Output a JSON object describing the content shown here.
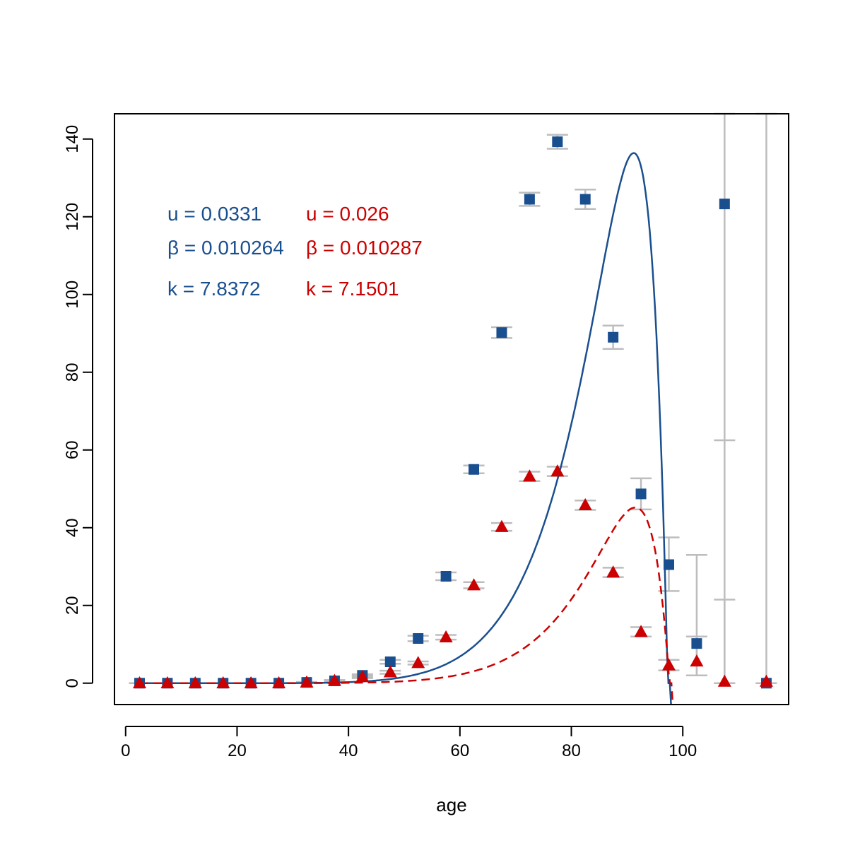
{
  "chart_data": {
    "type": "scatter",
    "title": "",
    "xlabel": "age",
    "ylabel": "",
    "xlim": [
      -2,
      119
    ],
    "ylim": [
      -5.5,
      146.5
    ],
    "x_ticks": [
      0,
      20,
      40,
      60,
      80,
      100
    ],
    "y_ticks": [
      0,
      20,
      40,
      60,
      80,
      100,
      120,
      140
    ],
    "grid": false,
    "colors": {
      "blue": "#1a4f8f",
      "red": "#cc0000",
      "errorbar": "#bdbdbd"
    },
    "series": [
      {
        "marker": "square",
        "color": "#1a4f8f",
        "points": [
          {
            "x": 2.5,
            "y": 0,
            "lo": 0,
            "hi": 0
          },
          {
            "x": 7.5,
            "y": 0,
            "lo": 0,
            "hi": 0
          },
          {
            "x": 12.5,
            "y": 0,
            "lo": 0,
            "hi": 0
          },
          {
            "x": 17.5,
            "y": 0,
            "lo": 0,
            "hi": 0
          },
          {
            "x": 22.5,
            "y": 0,
            "lo": 0,
            "hi": 0
          },
          {
            "x": 27.5,
            "y": 0,
            "lo": 0,
            "hi": 0
          },
          {
            "x": 32.5,
            "y": 0.2,
            "lo": 0.1,
            "hi": 0.3
          },
          {
            "x": 37.5,
            "y": 0.6,
            "lo": 0.4,
            "hi": 0.8
          },
          {
            "x": 42.5,
            "y": 2.0,
            "lo": 1.7,
            "hi": 2.3
          },
          {
            "x": 47.5,
            "y": 5.5,
            "lo": 5.0,
            "hi": 6.0
          },
          {
            "x": 52.5,
            "y": 11.5,
            "lo": 10.8,
            "hi": 12.2
          },
          {
            "x": 57.5,
            "y": 27.5,
            "lo": 26.5,
            "hi": 28.5
          },
          {
            "x": 62.5,
            "y": 55.0,
            "lo": 54.0,
            "hi": 56.0
          },
          {
            "x": 67.5,
            "y": 90.2,
            "lo": 88.8,
            "hi": 91.6
          },
          {
            "x": 72.5,
            "y": 124.5,
            "lo": 122.8,
            "hi": 126.2
          },
          {
            "x": 77.5,
            "y": 139.3,
            "lo": 137.5,
            "hi": 141.1
          },
          {
            "x": 82.5,
            "y": 124.5,
            "lo": 122.0,
            "hi": 127.0
          },
          {
            "x": 87.5,
            "y": 89.0,
            "lo": 86.0,
            "hi": 92.0
          },
          {
            "x": 92.5,
            "y": 48.7,
            "lo": 44.7,
            "hi": 52.7
          },
          {
            "x": 97.5,
            "y": 30.5,
            "lo": 23.7,
            "hi": 37.5
          },
          {
            "x": 102.5,
            "y": 10.2,
            "lo": 2.0,
            "hi": 33.0
          },
          {
            "x": 107.5,
            "y": 123.3,
            "lo": 0.0,
            "hi": 146.5
          },
          {
            "x": 115,
            "y": 0,
            "lo": 0,
            "hi": 146.5
          }
        ],
        "fit": {
          "u": 0.0331,
          "beta": 0.010264,
          "k": 7.8372,
          "peak_x": 85,
          "peak_y": 136.4,
          "end_x": 97.3,
          "style": "solid"
        }
      },
      {
        "marker": "triangle",
        "color": "#cc0000",
        "points": [
          {
            "x": 2.5,
            "y": 0,
            "lo": 0,
            "hi": 0
          },
          {
            "x": 7.5,
            "y": 0,
            "lo": 0,
            "hi": 0
          },
          {
            "x": 12.5,
            "y": 0,
            "lo": 0,
            "hi": 0
          },
          {
            "x": 17.5,
            "y": 0,
            "lo": 0,
            "hi": 0
          },
          {
            "x": 22.5,
            "y": 0,
            "lo": 0,
            "hi": 0
          },
          {
            "x": 27.5,
            "y": 0,
            "lo": 0,
            "hi": 0
          },
          {
            "x": 32.5,
            "y": 0.2,
            "lo": 0.1,
            "hi": 0.3
          },
          {
            "x": 37.5,
            "y": 0.6,
            "lo": 0.4,
            "hi": 0.8
          },
          {
            "x": 42.5,
            "y": 1.6,
            "lo": 1.3,
            "hi": 1.9
          },
          {
            "x": 47.5,
            "y": 2.8,
            "lo": 2.4,
            "hi": 3.2
          },
          {
            "x": 52.5,
            "y": 5.2,
            "lo": 4.8,
            "hi": 5.6
          },
          {
            "x": 57.5,
            "y": 11.8,
            "lo": 11.2,
            "hi": 12.4
          },
          {
            "x": 62.5,
            "y": 25.2,
            "lo": 24.4,
            "hi": 26.0
          },
          {
            "x": 67.5,
            "y": 40.2,
            "lo": 39.2,
            "hi": 41.2
          },
          {
            "x": 72.5,
            "y": 53.2,
            "lo": 52.0,
            "hi": 54.4
          },
          {
            "x": 77.5,
            "y": 54.5,
            "lo": 53.3,
            "hi": 55.7
          },
          {
            "x": 82.5,
            "y": 45.8,
            "lo": 44.6,
            "hi": 47.0
          },
          {
            "x": 87.5,
            "y": 28.5,
            "lo": 27.3,
            "hi": 29.7
          },
          {
            "x": 92.5,
            "y": 13.2,
            "lo": 12.0,
            "hi": 14.4
          },
          {
            "x": 97.5,
            "y": 4.6,
            "lo": 3.3,
            "hi": 6.0
          },
          {
            "x": 102.5,
            "y": 5.6,
            "lo": 2.0,
            "hi": 12.0
          },
          {
            "x": 107.5,
            "y": 0.4,
            "lo": 0,
            "hi": 21.5
          },
          {
            "x": 115,
            "y": 0.4,
            "lo": 0,
            "hi": 0
          }
        ],
        "fit": {
          "u": 0.026,
          "beta": 0.010287,
          "k": 7.1501,
          "peak_x": 82.5,
          "peak_y": 45.2,
          "end_x": 97.6,
          "style": "dashed"
        }
      }
    ],
    "annotations": {
      "blue_u": "u = 0.0331",
      "blue_beta": "β = 0.010264",
      "blue_k": "k =  7.8372",
      "red_u": "u = 0.026",
      "red_beta": "β = 0.010287",
      "red_k": "k =  7.1501"
    },
    "extra_whisker": {
      "x": 107.5,
      "y": 62.5
    }
  }
}
